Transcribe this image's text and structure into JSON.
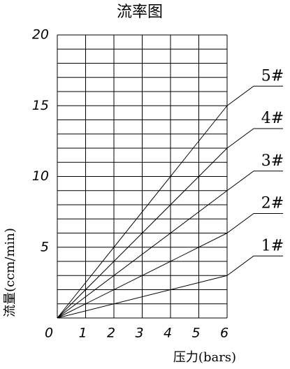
{
  "chart_data": {
    "type": "line",
    "title": "流率图",
    "x_label": "压力(bars)",
    "y_label": "流量(ccm/min)",
    "x": [
      0,
      6
    ],
    "series": [
      {
        "name": "1#",
        "color": "#000000",
        "values": [
          0,
          3
        ]
      },
      {
        "name": "2#",
        "color": "#000000",
        "values": [
          0,
          6
        ]
      },
      {
        "name": "3#",
        "color": "#000000",
        "values": [
          0,
          9
        ]
      },
      {
        "name": "4#",
        "color": "#000000",
        "values": [
          0,
          12
        ]
      },
      {
        "name": "5#",
        "color": "#000000",
        "values": [
          0,
          15
        ]
      }
    ],
    "xlim": [
      0,
      6
    ],
    "xticks": [
      0,
      1,
      2,
      3,
      4,
      5,
      6
    ],
    "ylim": [
      0,
      20
    ],
    "yticks": [
      5,
      10,
      15,
      20
    ],
    "ygrid": [
      0,
      1,
      2,
      3,
      4,
      5,
      6,
      7,
      8,
      9,
      10,
      11,
      12,
      13,
      14,
      15,
      16,
      17,
      18,
      19,
      20
    ],
    "grid": true
  }
}
